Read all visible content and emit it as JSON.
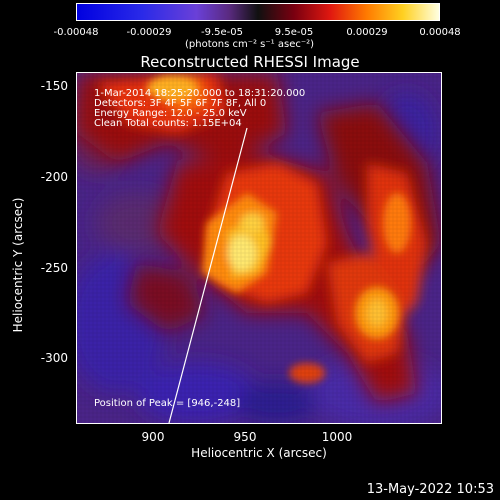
{
  "colorbar": {
    "ticks": [
      "-0.00048",
      "-0.00029",
      "-9.5e-05",
      "9.5e-05",
      "0.00029",
      "0.00048"
    ],
    "units": "(photons cm⁻² s⁻¹ asec⁻²)"
  },
  "title": "Reconstructed RHESSI Image",
  "info": {
    "time_range": "1-Mar-2014 18:25:20.000 to 18:31:20.000",
    "detectors": "Detectors: 3F 4F 5F 6F 7F 8F, All 0",
    "energy": "Energy Range: 12.0 - 25.0 keV",
    "clean": "Clean    Total counts: 1.15E+04",
    "peak": "Position of Peak = [946,-248]"
  },
  "axes": {
    "xlabel": "Heliocentric X (arcsec)",
    "ylabel": "Heliocentric Y (arcsec)",
    "xticks": [
      "900",
      "950",
      "1000"
    ],
    "yticks": [
      "-150",
      "-200",
      "-250",
      "-300"
    ]
  },
  "footer": {
    "date": "13-May-2022 10:53"
  }
}
